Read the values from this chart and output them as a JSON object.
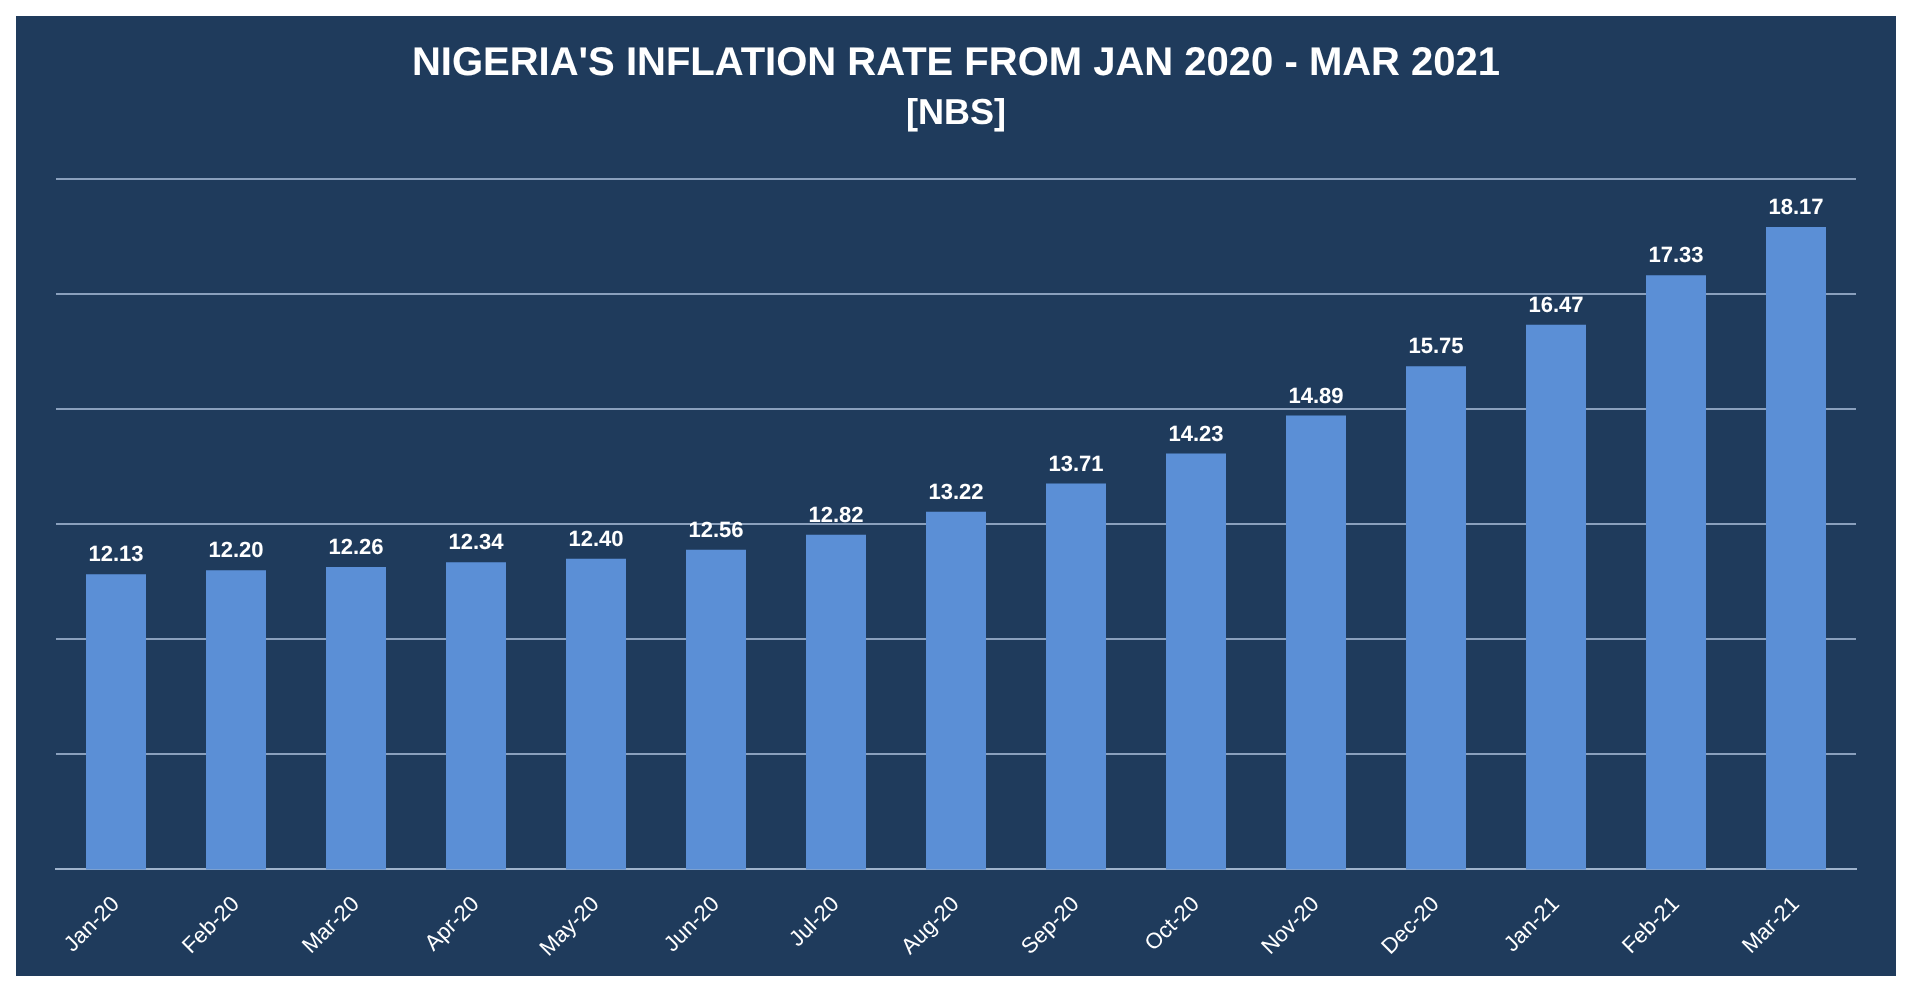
{
  "chart_data": {
    "type": "bar",
    "title": "NIGERIA'S INFLATION RATE FROM JAN 2020 - MAR 2021",
    "subtitle": "[NBS]",
    "categories": [
      "Jan-20",
      "Feb-20",
      "Mar-20",
      "Apr-20",
      "May-20",
      "Jun-20",
      "Jul-20",
      "Aug-20",
      "Sep-20",
      "Oct-20",
      "Nov-20",
      "Dec-20",
      "Jan-21",
      "Feb-21",
      "Mar-21"
    ],
    "values": [
      12.13,
      12.2,
      12.26,
      12.34,
      12.4,
      12.56,
      12.82,
      13.22,
      13.71,
      14.23,
      14.89,
      15.75,
      16.47,
      17.33,
      18.17
    ],
    "color": "#5b8fd6",
    "ylim": [
      7,
      19
    ],
    "yticks": [
      {
        "value": 7,
        "label": null
      },
      {
        "value": 9,
        "label": null
      },
      {
        "value": 11,
        "label": null
      },
      {
        "value": 13,
        "label": null
      },
      {
        "value": 15,
        "label": null
      },
      {
        "value": 17,
        "label": null
      },
      {
        "value": 19,
        "label": null
      }
    ],
    "value_labels": [
      "12.13",
      "12.20",
      "12.26",
      "12.34",
      "12.40",
      "12.56",
      "12.82",
      "13.22",
      "13.71",
      "14.23",
      "14.89",
      "15.75",
      "16.47",
      "17.33",
      "18.17"
    ],
    "grid": "y",
    "tick_labels": "x",
    "legend": false
  }
}
